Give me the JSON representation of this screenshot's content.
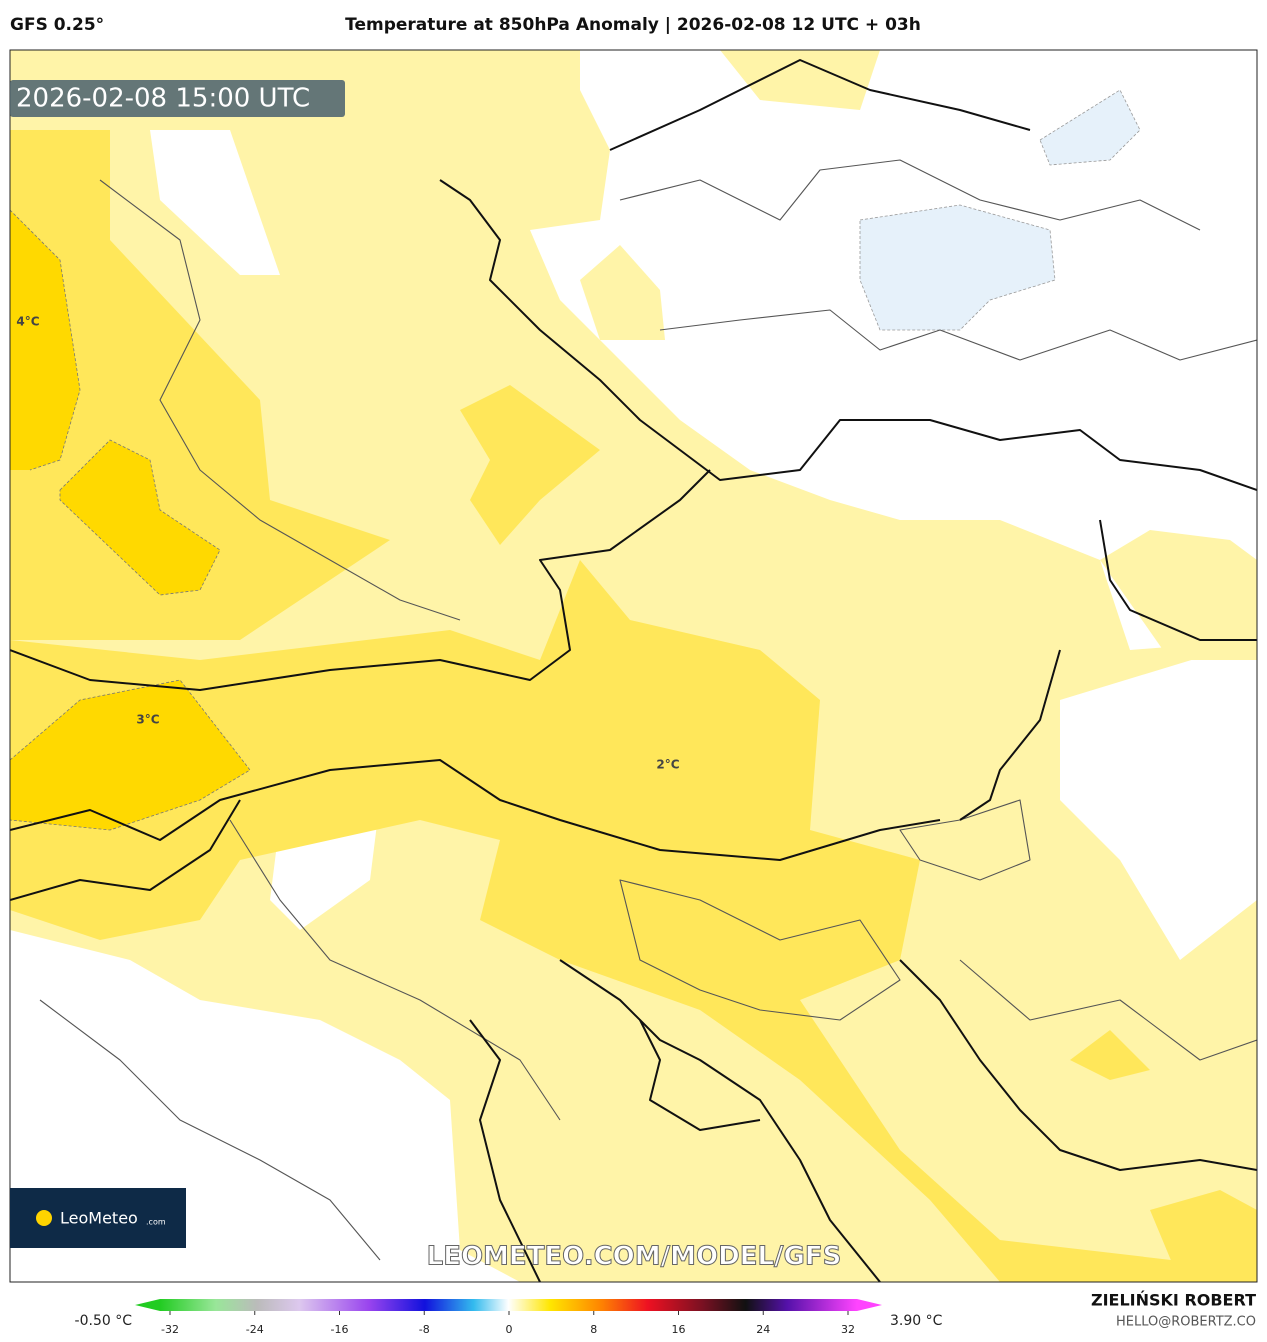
{
  "header": {
    "model": "GFS 0.25°",
    "title": "Temperature at 850hPa Anomaly | 2026-02-08 12 UTC + 03h"
  },
  "map": {
    "timestamp": "2026-02-08 15:00 UTC",
    "contour_labels": [
      "4°C",
      "3°C",
      "2°C"
    ],
    "watermark": "LEOMETEO.COM/MODEL/GFS",
    "logo": {
      "name": "LeoMeteo",
      "suffix": ".com"
    }
  },
  "colorbar": {
    "min_label": "-0.50 °C",
    "max_label": "3.90 °C",
    "ticks": [
      -32,
      -24,
      -16,
      -8,
      0,
      8,
      16,
      24,
      32
    ]
  },
  "footer": {
    "author": "ZIELIŃSKI ROBERT",
    "contact": "HELLO@ROBERTZ.CO"
  }
}
